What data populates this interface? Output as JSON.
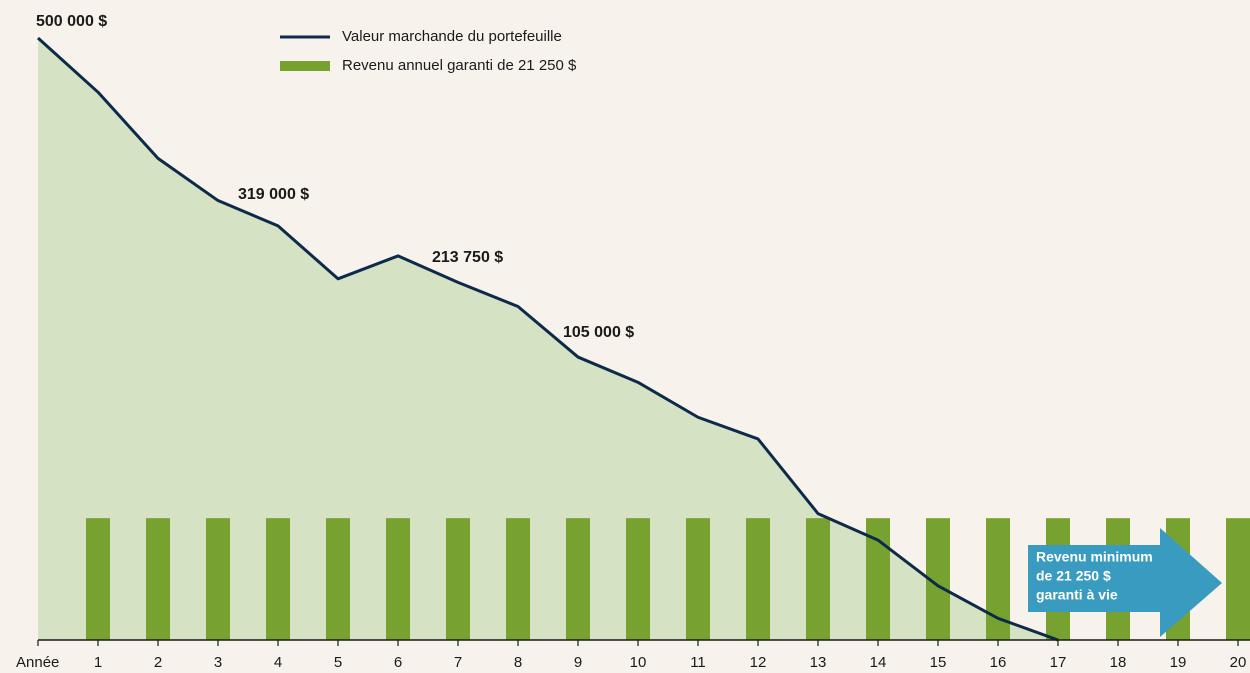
{
  "chart_data": {
    "type": "line",
    "categories": [
      "Année",
      "1",
      "2",
      "3",
      "4",
      "5",
      "6",
      "7",
      "8",
      "9",
      "10",
      "11",
      "12",
      "13",
      "14",
      "15",
      "16",
      "17",
      "18",
      "19",
      "20"
    ],
    "series": [
      {
        "name": "Valeur marchande du portefeuille",
        "color": "#0e2a4a",
        "area_color": "#d6e2c4",
        "values": [
          500000,
          455000,
          400000,
          365000,
          344000,
          300000,
          319000,
          297000,
          277000,
          235000,
          214000,
          185000,
          167000,
          105000,
          83000,
          45000,
          18000,
          0,
          null,
          null,
          null
        ]
      },
      {
        "name": "Revenu annuel garanti de 21 250 $",
        "type": "bar",
        "axis": "y2",
        "color": "#78a22f",
        "values": [
          null,
          21250,
          21250,
          21250,
          21250,
          21250,
          21250,
          21250,
          21250,
          21250,
          21250,
          21250,
          21250,
          21250,
          21250,
          21250,
          21250,
          21250,
          21250,
          21250,
          21250
        ]
      }
    ],
    "annotations": [
      {
        "text": "500 000 $"
      },
      {
        "text": "319 000 $"
      },
      {
        "text": "213 750 $"
      },
      {
        "text": "105 000 $"
      }
    ],
    "callout": {
      "lines": [
        "Revenu minimum",
        "de 21 250 $",
        "garanti à vie"
      ],
      "color": "#3a9bc0"
    },
    "ylim": [
      0,
      500000
    ],
    "y2lim": [
      0,
      105000
    ],
    "legend": "top"
  }
}
